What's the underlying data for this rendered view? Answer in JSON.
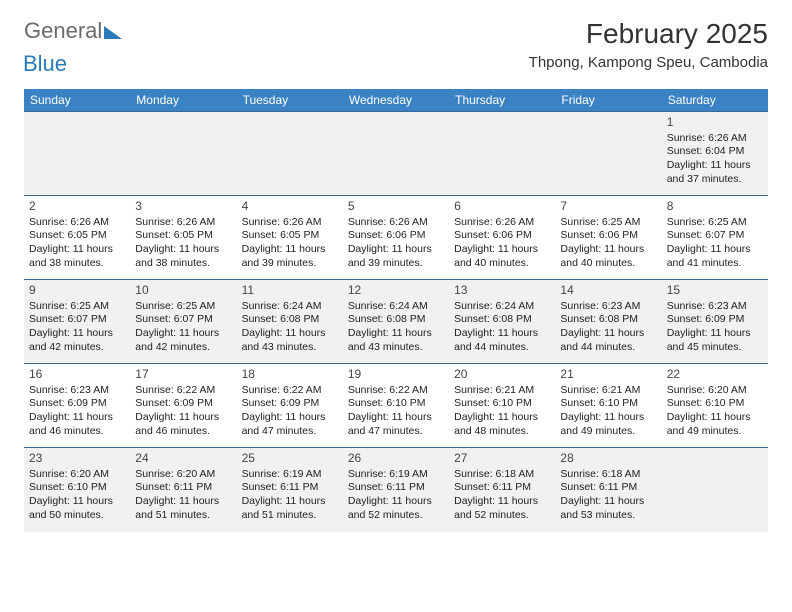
{
  "brand": {
    "word1": "General",
    "word2": "Blue"
  },
  "title": "February 2025",
  "location": "Thpong, Kampong Speu, Cambodia",
  "header_bg": "#3b82c4",
  "weekdays": [
    "Sunday",
    "Monday",
    "Tuesday",
    "Wednesday",
    "Thursday",
    "Friday",
    "Saturday"
  ],
  "weeks": [
    {
      "alt": true,
      "cells": [
        null,
        null,
        null,
        null,
        null,
        null,
        {
          "n": "1",
          "sr": "Sunrise: 6:26 AM",
          "ss": "Sunset: 6:04 PM",
          "d1": "Daylight: 11 hours",
          "d2": "and 37 minutes."
        }
      ]
    },
    {
      "alt": false,
      "cells": [
        {
          "n": "2",
          "sr": "Sunrise: 6:26 AM",
          "ss": "Sunset: 6:05 PM",
          "d1": "Daylight: 11 hours",
          "d2": "and 38 minutes."
        },
        {
          "n": "3",
          "sr": "Sunrise: 6:26 AM",
          "ss": "Sunset: 6:05 PM",
          "d1": "Daylight: 11 hours",
          "d2": "and 38 minutes."
        },
        {
          "n": "4",
          "sr": "Sunrise: 6:26 AM",
          "ss": "Sunset: 6:05 PM",
          "d1": "Daylight: 11 hours",
          "d2": "and 39 minutes."
        },
        {
          "n": "5",
          "sr": "Sunrise: 6:26 AM",
          "ss": "Sunset: 6:06 PM",
          "d1": "Daylight: 11 hours",
          "d2": "and 39 minutes."
        },
        {
          "n": "6",
          "sr": "Sunrise: 6:26 AM",
          "ss": "Sunset: 6:06 PM",
          "d1": "Daylight: 11 hours",
          "d2": "and 40 minutes."
        },
        {
          "n": "7",
          "sr": "Sunrise: 6:25 AM",
          "ss": "Sunset: 6:06 PM",
          "d1": "Daylight: 11 hours",
          "d2": "and 40 minutes."
        },
        {
          "n": "8",
          "sr": "Sunrise: 6:25 AM",
          "ss": "Sunset: 6:07 PM",
          "d1": "Daylight: 11 hours",
          "d2": "and 41 minutes."
        }
      ]
    },
    {
      "alt": true,
      "cells": [
        {
          "n": "9",
          "sr": "Sunrise: 6:25 AM",
          "ss": "Sunset: 6:07 PM",
          "d1": "Daylight: 11 hours",
          "d2": "and 42 minutes."
        },
        {
          "n": "10",
          "sr": "Sunrise: 6:25 AM",
          "ss": "Sunset: 6:07 PM",
          "d1": "Daylight: 11 hours",
          "d2": "and 42 minutes."
        },
        {
          "n": "11",
          "sr": "Sunrise: 6:24 AM",
          "ss": "Sunset: 6:08 PM",
          "d1": "Daylight: 11 hours",
          "d2": "and 43 minutes."
        },
        {
          "n": "12",
          "sr": "Sunrise: 6:24 AM",
          "ss": "Sunset: 6:08 PM",
          "d1": "Daylight: 11 hours",
          "d2": "and 43 minutes."
        },
        {
          "n": "13",
          "sr": "Sunrise: 6:24 AM",
          "ss": "Sunset: 6:08 PM",
          "d1": "Daylight: 11 hours",
          "d2": "and 44 minutes."
        },
        {
          "n": "14",
          "sr": "Sunrise: 6:23 AM",
          "ss": "Sunset: 6:08 PM",
          "d1": "Daylight: 11 hours",
          "d2": "and 44 minutes."
        },
        {
          "n": "15",
          "sr": "Sunrise: 6:23 AM",
          "ss": "Sunset: 6:09 PM",
          "d1": "Daylight: 11 hours",
          "d2": "and 45 minutes."
        }
      ]
    },
    {
      "alt": false,
      "cells": [
        {
          "n": "16",
          "sr": "Sunrise: 6:23 AM",
          "ss": "Sunset: 6:09 PM",
          "d1": "Daylight: 11 hours",
          "d2": "and 46 minutes."
        },
        {
          "n": "17",
          "sr": "Sunrise: 6:22 AM",
          "ss": "Sunset: 6:09 PM",
          "d1": "Daylight: 11 hours",
          "d2": "and 46 minutes."
        },
        {
          "n": "18",
          "sr": "Sunrise: 6:22 AM",
          "ss": "Sunset: 6:09 PM",
          "d1": "Daylight: 11 hours",
          "d2": "and 47 minutes."
        },
        {
          "n": "19",
          "sr": "Sunrise: 6:22 AM",
          "ss": "Sunset: 6:10 PM",
          "d1": "Daylight: 11 hours",
          "d2": "and 47 minutes."
        },
        {
          "n": "20",
          "sr": "Sunrise: 6:21 AM",
          "ss": "Sunset: 6:10 PM",
          "d1": "Daylight: 11 hours",
          "d2": "and 48 minutes."
        },
        {
          "n": "21",
          "sr": "Sunrise: 6:21 AM",
          "ss": "Sunset: 6:10 PM",
          "d1": "Daylight: 11 hours",
          "d2": "and 49 minutes."
        },
        {
          "n": "22",
          "sr": "Sunrise: 6:20 AM",
          "ss": "Sunset: 6:10 PM",
          "d1": "Daylight: 11 hours",
          "d2": "and 49 minutes."
        }
      ]
    },
    {
      "alt": true,
      "cells": [
        {
          "n": "23",
          "sr": "Sunrise: 6:20 AM",
          "ss": "Sunset: 6:10 PM",
          "d1": "Daylight: 11 hours",
          "d2": "and 50 minutes."
        },
        {
          "n": "24",
          "sr": "Sunrise: 6:20 AM",
          "ss": "Sunset: 6:11 PM",
          "d1": "Daylight: 11 hours",
          "d2": "and 51 minutes."
        },
        {
          "n": "25",
          "sr": "Sunrise: 6:19 AM",
          "ss": "Sunset: 6:11 PM",
          "d1": "Daylight: 11 hours",
          "d2": "and 51 minutes."
        },
        {
          "n": "26",
          "sr": "Sunrise: 6:19 AM",
          "ss": "Sunset: 6:11 PM",
          "d1": "Daylight: 11 hours",
          "d2": "and 52 minutes."
        },
        {
          "n": "27",
          "sr": "Sunrise: 6:18 AM",
          "ss": "Sunset: 6:11 PM",
          "d1": "Daylight: 11 hours",
          "d2": "and 52 minutes."
        },
        {
          "n": "28",
          "sr": "Sunrise: 6:18 AM",
          "ss": "Sunset: 6:11 PM",
          "d1": "Daylight: 11 hours",
          "d2": "and 53 minutes."
        },
        null
      ]
    }
  ]
}
